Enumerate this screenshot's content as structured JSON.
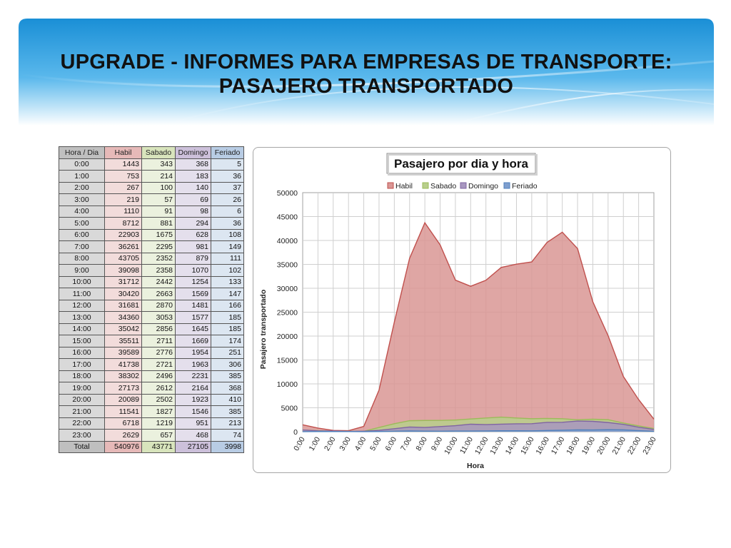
{
  "slide": {
    "title_line1": "UPGRADE - INFORMES PARA EMPRESAS DE TRANSPORTE:",
    "title_line2": "PASAJERO TRANSPORTADO"
  },
  "table": {
    "headers": [
      "Hora / Dia",
      "Habil",
      "Sabado",
      "Domingo",
      "Feriado"
    ],
    "rows": [
      [
        "0:00",
        "1443",
        "343",
        "368",
        "5"
      ],
      [
        "1:00",
        "753",
        "214",
        "183",
        "36"
      ],
      [
        "2:00",
        "267",
        "100",
        "140",
        "37"
      ],
      [
        "3:00",
        "219",
        "57",
        "69",
        "26"
      ],
      [
        "4:00",
        "1110",
        "91",
        "98",
        "6"
      ],
      [
        "5:00",
        "8712",
        "881",
        "294",
        "36"
      ],
      [
        "6:00",
        "22903",
        "1675",
        "628",
        "108"
      ],
      [
        "7:00",
        "36261",
        "2295",
        "981",
        "149"
      ],
      [
        "8:00",
        "43705",
        "2352",
        "879",
        "111"
      ],
      [
        "9:00",
        "39098",
        "2358",
        "1070",
        "102"
      ],
      [
        "10:00",
        "31712",
        "2442",
        "1254",
        "133"
      ],
      [
        "11:00",
        "30420",
        "2663",
        "1569",
        "147"
      ],
      [
        "12:00",
        "31681",
        "2870",
        "1481",
        "166"
      ],
      [
        "13:00",
        "34360",
        "3053",
        "1577",
        "185"
      ],
      [
        "14:00",
        "35042",
        "2856",
        "1645",
        "185"
      ],
      [
        "15:00",
        "35511",
        "2711",
        "1669",
        "174"
      ],
      [
        "16:00",
        "39589",
        "2776",
        "1954",
        "251"
      ],
      [
        "17:00",
        "41738",
        "2721",
        "1963",
        "306"
      ],
      [
        "18:00",
        "38302",
        "2496",
        "2231",
        "385"
      ],
      [
        "19:00",
        "27173",
        "2612",
        "2164",
        "368"
      ],
      [
        "20:00",
        "20089",
        "2502",
        "1923",
        "410"
      ],
      [
        "21:00",
        "11541",
        "1827",
        "1546",
        "385"
      ],
      [
        "22:00",
        "6718",
        "1219",
        "951",
        "213"
      ],
      [
        "23:00",
        "2629",
        "657",
        "468",
        "74"
      ]
    ],
    "total": [
      "Total",
      "540976",
      "43771",
      "27105",
      "3998"
    ]
  },
  "chart_data": {
    "type": "area",
    "title": "Pasajero por dia y hora",
    "xlabel": "Hora",
    "ylabel": "Pasajero transportado",
    "ylim": [
      0,
      50000
    ],
    "yticks": [
      0,
      5000,
      10000,
      15000,
      20000,
      25000,
      30000,
      35000,
      40000,
      45000,
      50000
    ],
    "categories": [
      "0:00",
      "1:00",
      "2:00",
      "3:00",
      "4:00",
      "5:00",
      "6:00",
      "7:00",
      "8:00",
      "9:00",
      "10:00",
      "11:00",
      "12:00",
      "13:00",
      "14:00",
      "15:00",
      "16:00",
      "17:00",
      "18:00",
      "19:00",
      "20:00",
      "21:00",
      "22:00",
      "23:00"
    ],
    "series": [
      {
        "name": "Habil",
        "color": "#d99694",
        "stroke": "#c0504d",
        "values": [
          1443,
          753,
          267,
          219,
          1110,
          8712,
          22903,
          36261,
          43705,
          39098,
          31712,
          30420,
          31681,
          34360,
          35042,
          35511,
          39589,
          41738,
          38302,
          27173,
          20089,
          11541,
          6718,
          2629
        ]
      },
      {
        "name": "Sabado",
        "color": "#b8cf8c",
        "stroke": "#9bbb59",
        "values": [
          343,
          214,
          100,
          57,
          91,
          881,
          1675,
          2295,
          2352,
          2358,
          2442,
          2663,
          2870,
          3053,
          2856,
          2711,
          2776,
          2721,
          2496,
          2612,
          2502,
          1827,
          1219,
          657
        ]
      },
      {
        "name": "Domingo",
        "color": "#a897c0",
        "stroke": "#8064a2",
        "values": [
          368,
          183,
          140,
          69,
          98,
          294,
          628,
          981,
          879,
          1070,
          1254,
          1569,
          1481,
          1577,
          1645,
          1669,
          1954,
          1963,
          2231,
          2164,
          1923,
          1546,
          951,
          468
        ]
      },
      {
        "name": "Feriado",
        "color": "#7f9fcf",
        "stroke": "#4f81bd",
        "values": [
          5,
          36,
          37,
          26,
          6,
          36,
          108,
          149,
          111,
          102,
          133,
          147,
          166,
          185,
          185,
          174,
          251,
          306,
          385,
          368,
          410,
          385,
          213,
          74
        ]
      }
    ],
    "grid": true,
    "legend": "top"
  }
}
